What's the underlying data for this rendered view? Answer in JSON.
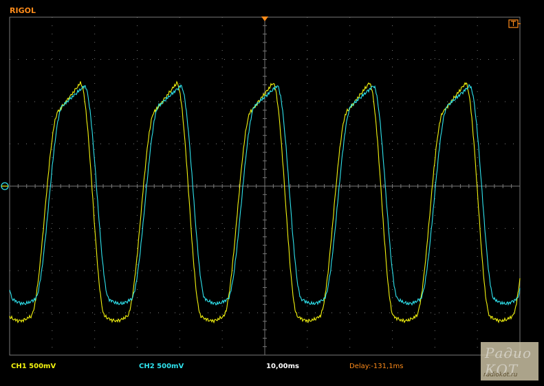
{
  "header": {
    "brand": "RIGOL"
  },
  "colors": {
    "ch1": "#f4f40f",
    "ch2": "#2fe3ee",
    "grid": "#7a7a7a",
    "orange": "#ff8c1a",
    "background": "#000000"
  },
  "icons": {
    "trigger_position": "trigger-position-icon",
    "trigger_mode": "trigger-mode-icon",
    "ground_marker": "ground-marker-icon"
  },
  "status_bar": {
    "ch1": "CH1 500mV",
    "ch2": "CH2 500mV",
    "timebase": "10,00ms",
    "delay": "Delay:-131,1ms"
  },
  "watermark": {
    "logo_text": "Радио КОТ",
    "url": "radiokot.ru"
  }
}
